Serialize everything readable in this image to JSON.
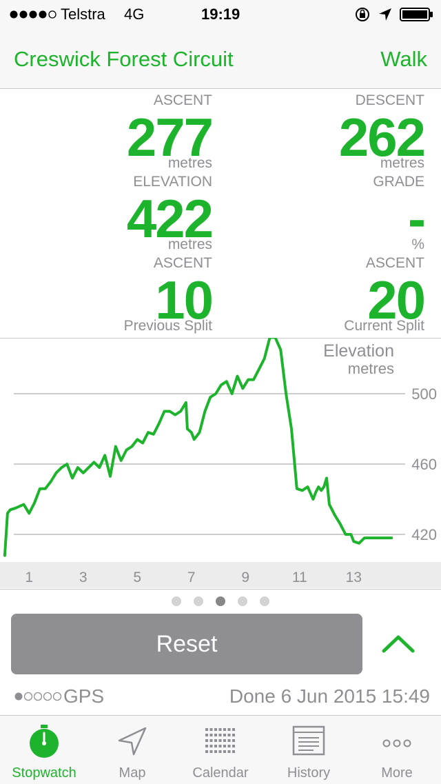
{
  "status_bar": {
    "carrier": "Telstra",
    "network": "4G",
    "time": "19:19"
  },
  "header": {
    "title": "Creswick Forest Circuit",
    "mode": "Walk"
  },
  "stats": [
    {
      "label": "ASCENT",
      "value": "277",
      "unit": "metres"
    },
    {
      "label": "DESCENT",
      "value": "262",
      "unit": "metres"
    },
    {
      "label": "ELEVATION",
      "value": "422",
      "unit": "metres"
    },
    {
      "label": "GRADE",
      "value": "-",
      "unit": "%"
    },
    {
      "label": "ASCENT",
      "value": "10",
      "unit": "Previous Split"
    },
    {
      "label": "ASCENT",
      "value": "20",
      "unit": "Current Split"
    }
  ],
  "chart_data": {
    "type": "line",
    "title": "Elevation",
    "ylabel": "metres",
    "x_ticks": [
      "1",
      "3",
      "5",
      "7",
      "9",
      "11",
      "13"
    ],
    "y_ticks": [
      "500",
      "460",
      "420"
    ],
    "xlim": [
      0,
      15
    ],
    "ylim": [
      406,
      532
    ],
    "series": [
      {
        "color": "#1db32c",
        "x": [
          0.1,
          0.2,
          0.3,
          0.5,
          0.8,
          1.0,
          1.2,
          1.4,
          1.6,
          1.8,
          2.0,
          2.2,
          2.4,
          2.6,
          2.8,
          3.0,
          3.2,
          3.4,
          3.6,
          3.8,
          4.0,
          4.2,
          4.4,
          4.6,
          4.8,
          5.0,
          5.2,
          5.4,
          5.6,
          5.8,
          6.0,
          6.2,
          6.4,
          6.6,
          6.8,
          6.85,
          7.0,
          7.1,
          7.3,
          7.5,
          7.7,
          7.9,
          8.1,
          8.3,
          8.5,
          8.7,
          8.9,
          9.1,
          9.3,
          9.5,
          9.7,
          9.9,
          10.1,
          10.3,
          10.5,
          10.7,
          10.9,
          11.1,
          11.3,
          11.5,
          11.6,
          11.7,
          11.8,
          11.9,
          12.0,
          12.1,
          12.3,
          12.5,
          12.7,
          12.9,
          13.0,
          13.2,
          13.4,
          13.6,
          13.8,
          14.0,
          14.2,
          14.4
        ],
        "y": [
          408,
          432,
          434,
          435,
          437,
          432,
          438,
          446,
          446,
          450,
          455,
          458,
          460,
          452,
          458,
          455,
          458,
          461,
          458,
          465,
          453,
          470,
          462,
          468,
          470,
          474,
          472,
          478,
          477,
          483,
          490,
          490,
          488,
          490,
          495,
          480,
          478,
          474,
          478,
          490,
          498,
          500,
          505,
          507,
          500,
          510,
          503,
          508,
          508,
          514,
          520,
          532,
          532,
          525,
          500,
          480,
          446,
          445,
          447,
          440,
          444,
          447,
          445,
          447,
          452,
          437,
          431,
          426,
          420,
          420,
          416,
          415,
          418,
          418,
          418,
          418,
          418,
          418
        ]
      }
    ]
  },
  "pagination": {
    "count": 5,
    "active": 2
  },
  "reset_label": "Reset",
  "gps": {
    "label": "GPS",
    "level": 1,
    "max": 5
  },
  "done_text": "Done 6 Jun 2015 15:49",
  "tabs": [
    {
      "label": "Stopwatch",
      "icon": "stopwatch-icon",
      "active": true
    },
    {
      "label": "Map",
      "icon": "map-arrow-icon",
      "active": false
    },
    {
      "label": "Calendar",
      "icon": "calendar-grid-icon",
      "active": false
    },
    {
      "label": "History",
      "icon": "history-list-icon",
      "active": false
    },
    {
      "label": "More",
      "icon": "more-dots-icon",
      "active": false
    }
  ],
  "colors": {
    "accent": "#1db32c",
    "muted": "#8e8e93",
    "button": "#8e8e93"
  }
}
